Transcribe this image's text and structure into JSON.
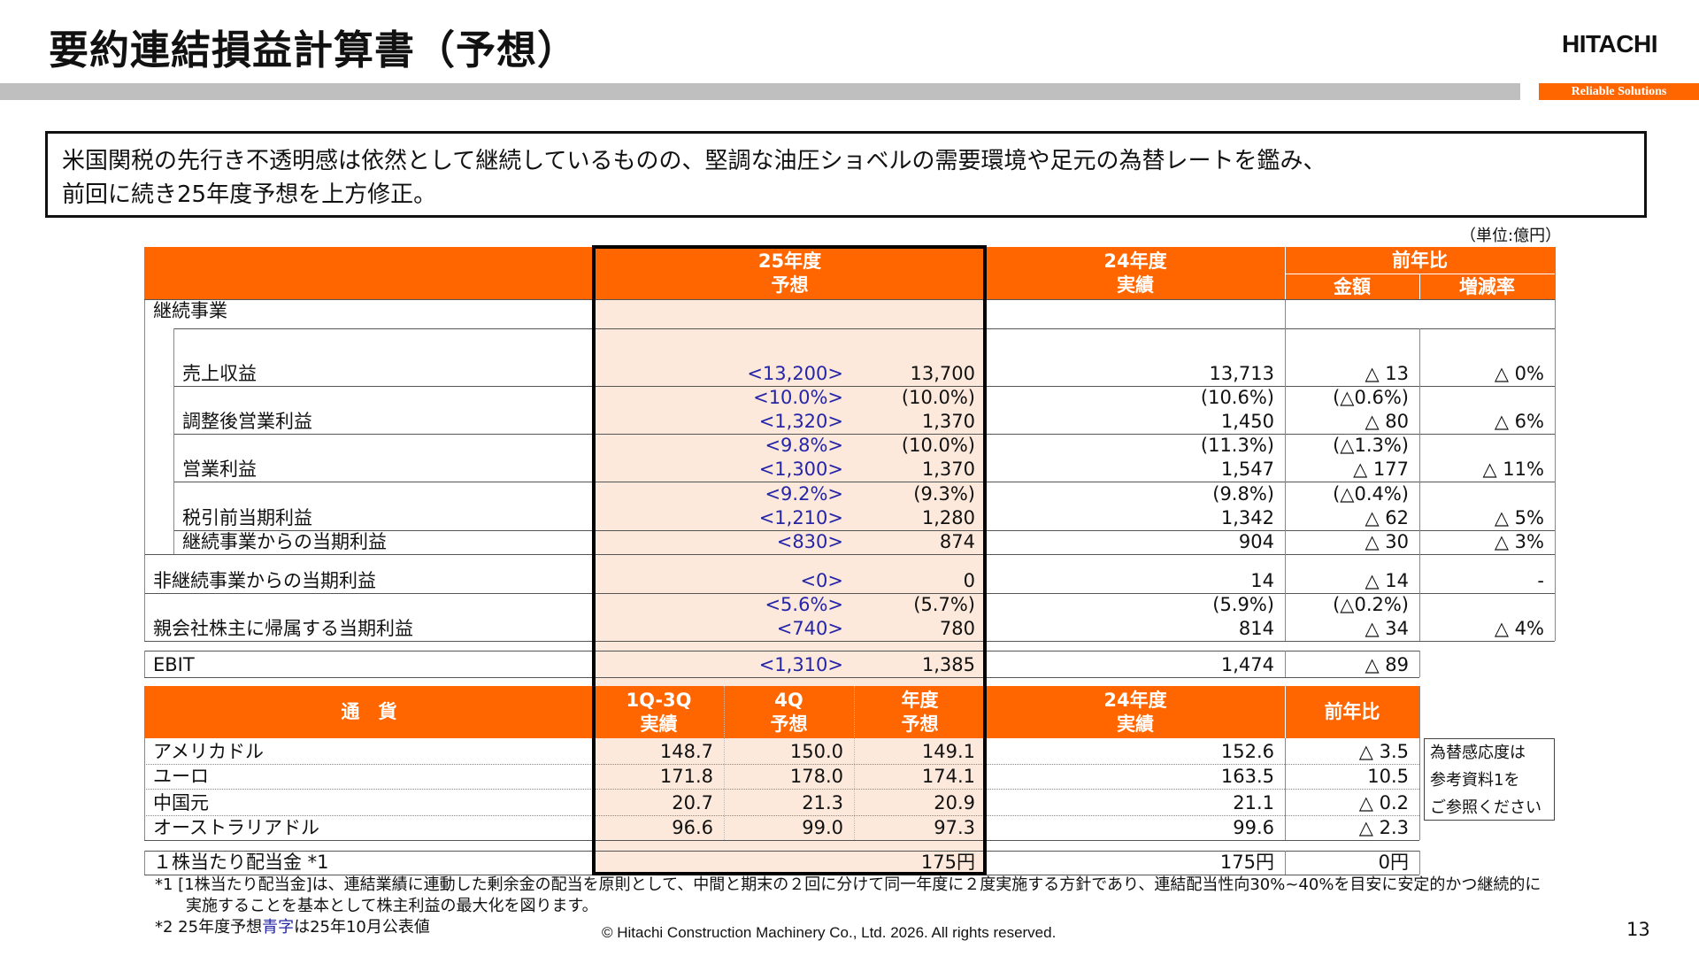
{
  "title": "要約連結損益計算書（予想）",
  "logo": "HITACHI",
  "tagline": "Reliable Solutions",
  "message": [
    "米国関税の先行き不透明感は依然として継続しているものの、堅調な油圧ショベルの需要環境や足元の為替レートを鑑み、",
    "前回に続き25年度予想を上方修正。"
  ],
  "unit": "（単位:億円）",
  "colors": {
    "header": "#ff6600",
    "forecast_bg": "#fde9dc",
    "previous_forecast_text": "#2525a8"
  },
  "pl": {
    "headers": {
      "fy25": [
        "25年度",
        "予想"
      ],
      "fy24": [
        "24年度",
        "実績"
      ],
      "yoy": "前年比",
      "amount": "金額",
      "rate": "増減率"
    },
    "section": "継続事業",
    "rows": [
      {
        "label": "売上収益",
        "prev_fc": [
          "<13,200>"
        ],
        "fc": [
          "13,700"
        ],
        "actual": [
          "13,713"
        ],
        "diff": [
          "△ 13"
        ],
        "rate": [
          "△ 0%"
        ]
      },
      {
        "label": "調整後営業利益",
        "prev_fc": [
          "<10.0%>",
          "<1,320>"
        ],
        "fc": [
          "(10.0%)",
          "1,370"
        ],
        "actual": [
          "(10.6%)",
          "1,450"
        ],
        "diff": [
          "(△0.6%)",
          "△ 80"
        ],
        "rate": [
          "△ 6%"
        ]
      },
      {
        "label": "営業利益",
        "prev_fc": [
          "<9.8%>",
          "<1,300>"
        ],
        "fc": [
          "(10.0%)",
          "1,370"
        ],
        "actual": [
          "(11.3%)",
          "1,547"
        ],
        "diff": [
          "(△1.3%)",
          "△ 177"
        ],
        "rate": [
          "△ 11%"
        ]
      },
      {
        "label": "税引前当期利益",
        "prev_fc": [
          "<9.2%>",
          "<1,210>"
        ],
        "fc": [
          "(9.3%)",
          "1,280"
        ],
        "actual": [
          "(9.8%)",
          "1,342"
        ],
        "diff": [
          "(△0.4%)",
          "△ 62"
        ],
        "rate": [
          "△ 5%"
        ]
      },
      {
        "label": "継続事業からの当期利益",
        "prev_fc": [
          "<830>"
        ],
        "fc": [
          "874"
        ],
        "actual": [
          "904"
        ],
        "diff": [
          "△ 30"
        ],
        "rate": [
          "△ 3%"
        ]
      },
      {
        "label": "非継続事業からの当期利益",
        "prev_fc": [
          "<0>"
        ],
        "fc": [
          "0"
        ],
        "actual": [
          "14"
        ],
        "diff": [
          "△ 14"
        ],
        "rate": [
          "-"
        ]
      },
      {
        "label": "親会社株主に帰属する当期利益",
        "prev_fc": [
          "<5.6%>",
          "<740>"
        ],
        "fc": [
          "(5.7%)",
          "780"
        ],
        "actual": [
          "(5.9%)",
          "814"
        ],
        "diff": [
          "(△0.2%)",
          "△ 34"
        ],
        "rate": [
          "△ 4%"
        ]
      }
    ]
  },
  "ebit": {
    "label": "EBIT",
    "prev_fc": [
      "<1,310>"
    ],
    "fc": [
      "1,385"
    ],
    "actual": [
      "1,474"
    ],
    "diff": [
      "△ 89"
    ]
  },
  "fx": {
    "headers": {
      "currency": "通　貨",
      "q1q3": [
        "1Q-3Q",
        "実績"
      ],
      "q4": [
        "4Q",
        "予想"
      ],
      "fy": [
        "年度",
        "予想"
      ],
      "fy24": [
        "24年度",
        "実績"
      ],
      "yoy": "前年比"
    },
    "rows": [
      {
        "label": "アメリカドル",
        "q1q3": "148.7",
        "q4": "150.0",
        "fy": "149.1",
        "fy24": "152.6",
        "yoy": "△ 3.5"
      },
      {
        "label": "ユーロ",
        "q1q3": "171.8",
        "q4": "178.0",
        "fy": "174.1",
        "fy24": "163.5",
        "yoy": "10.5"
      },
      {
        "label": "中国元",
        "q1q3": "20.7",
        "q4": "21.3",
        "fy": "20.9",
        "fy24": "21.1",
        "yoy": "△ 0.2"
      },
      {
        "label": "オーストラリアドル",
        "q1q3": "96.6",
        "q4": "99.0",
        "fy": "97.3",
        "fy24": "99.6",
        "yoy": "△ 2.3"
      }
    ],
    "note": [
      "為替感応度は",
      "参考資料1を",
      "ご参照ください"
    ]
  },
  "dividend": {
    "label": "１株当たり配当金 *1",
    "fc": "175円",
    "actual": "175円",
    "diff": "0円"
  },
  "footnotes": {
    "note1_line1": "*1 [1株当たり配当金]は、連結業績に連動した剰余金の配当を原則として、中間と期末の２回に分けて同一年度に２度実施する方針であり、連結配当性向30%~40%を目安に安定的かつ継続的に",
    "note1_line2": "実施することを基本として株主利益の最大化を図ります。",
    "note2_prefix": "*2 25年度予想",
    "note2_blue": "青字",
    "note2_suffix": "は25年10月公表値"
  },
  "copyright": "© Hitachi Construction Machinery Co., Ltd. 2026. All rights reserved.",
  "page_number": "13"
}
